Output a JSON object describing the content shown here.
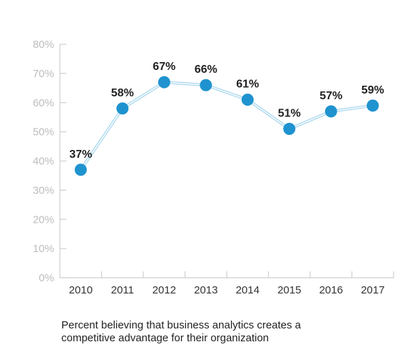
{
  "chart_data": {
    "type": "line",
    "title": "",
    "xlabel": "",
    "ylabel": "",
    "categories": [
      "2010",
      "2011",
      "2012",
      "2013",
      "2014",
      "2015",
      "2016",
      "2017"
    ],
    "values": [
      37,
      58,
      67,
      66,
      61,
      51,
      57,
      59
    ],
    "data_labels": [
      "37%",
      "58%",
      "67%",
      "66%",
      "61%",
      "51%",
      "57%",
      "59%"
    ],
    "ylim": [
      0,
      80
    ],
    "yticks": [
      0,
      10,
      20,
      30,
      40,
      50,
      60,
      70,
      80
    ],
    "ytick_labels": [
      "0%",
      "10%",
      "20%",
      "30%",
      "40%",
      "50%",
      "60%",
      "70%",
      "80%"
    ],
    "grid": false,
    "legend": "none",
    "colors": {
      "marker": "#1f93cf",
      "line": "#a9d7ee",
      "axis": "#cfcfcf"
    }
  },
  "caption": {
    "line1": "Percent believing that business analytics creates a",
    "line2": "competitive advantage for their organization"
  }
}
